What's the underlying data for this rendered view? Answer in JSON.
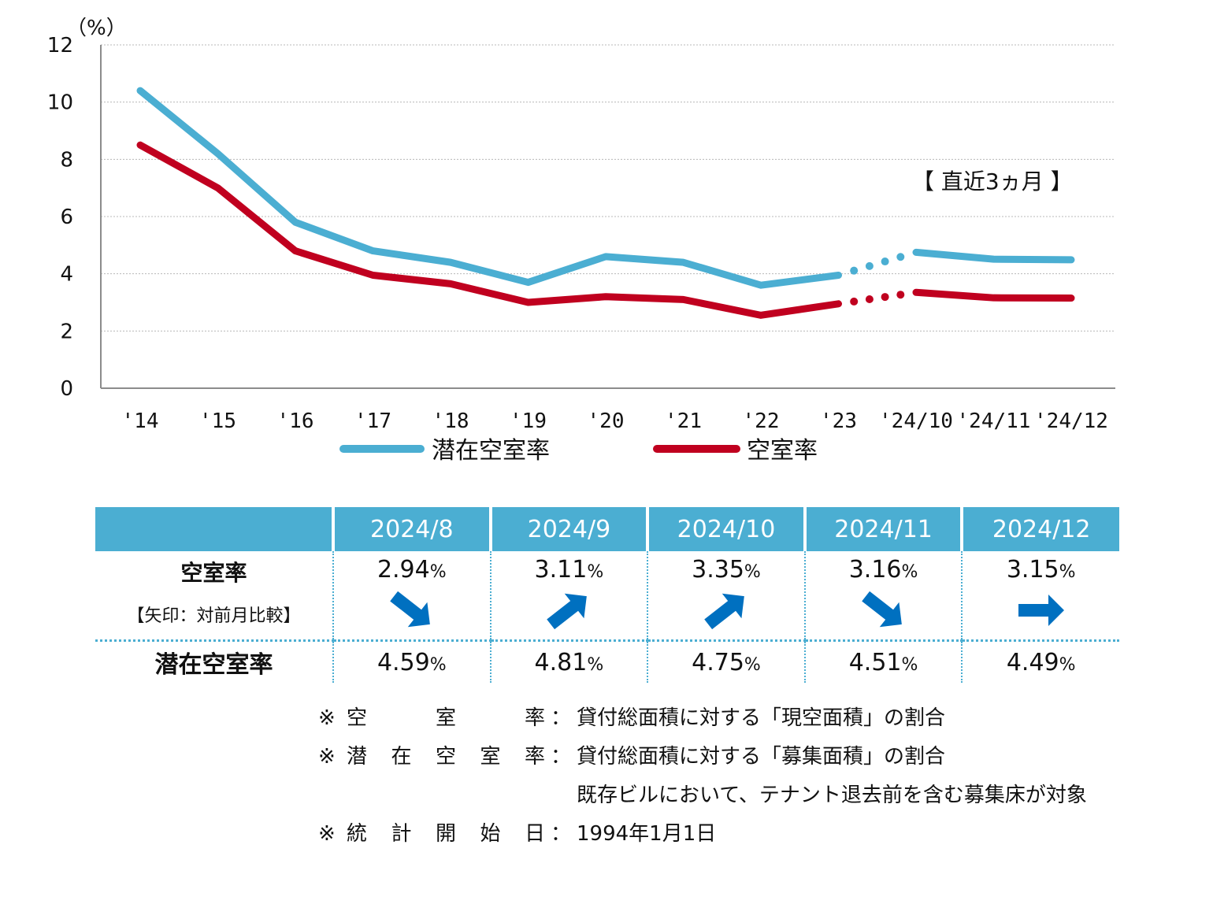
{
  "chart_data": {
    "type": "line",
    "unit_label": "（%）",
    "categories": [
      "'14",
      "'15",
      "'16",
      "'17",
      "'18",
      "'19",
      "'20",
      "'21",
      "'22",
      "'23",
      "'24/10",
      "'24/11",
      "'24/12"
    ],
    "ylim": [
      0,
      12
    ],
    "yticks": [
      0,
      2,
      4,
      6,
      8,
      10,
      12
    ],
    "grid": true,
    "series": [
      {
        "name": "潜在空室率",
        "color": "#4baed2",
        "values": [
          10.4,
          8.2,
          5.8,
          4.8,
          4.4,
          3.7,
          4.6,
          4.4,
          3.6,
          3.95,
          4.75,
          4.51,
          4.49
        ]
      },
      {
        "name": "空室率",
        "color": "#c0001f",
        "values": [
          8.5,
          7.0,
          4.8,
          3.95,
          3.65,
          3.0,
          3.2,
          3.1,
          2.55,
          2.95,
          3.35,
          3.16,
          3.15
        ]
      }
    ],
    "dotted_gap_after_index": 9,
    "annotation": "【 直近3ヵ月 】",
    "legend_placement": "bottom"
  },
  "table": {
    "headers": [
      "",
      "2024/8",
      "2024/9",
      "2024/10",
      "2024/11",
      "2024/12"
    ],
    "vacancy_label": "空室率",
    "vacancy_sublabel": "【矢印：対前月比較】",
    "potential_label": "潜在空室率",
    "pct": "%",
    "vacancy_values": [
      "2.94",
      "3.11",
      "3.35",
      "3.16",
      "3.15"
    ],
    "vacancy_trend": [
      "down",
      "up",
      "up",
      "down",
      "flat"
    ],
    "potential_values": [
      "4.59",
      "4.81",
      "4.75",
      "4.51",
      "4.49"
    ],
    "arrow_color": "#0070c0"
  },
  "notes": [
    {
      "mark": "※",
      "label": "空室率",
      "colon": "：",
      "text": "貸付総面積に対する「現空面積」の割合"
    },
    {
      "mark": "※",
      "label": "潜在空室率",
      "colon": "：",
      "text": "貸付総面積に対する「募集面積」の割合"
    },
    {
      "mark": "",
      "label": "",
      "colon": "",
      "text": "既存ビルにおいて、テナント退去前を含む募集床が対象"
    },
    {
      "mark": "※",
      "label": "統計開始日",
      "colon": "：",
      "text": "1994年1月1日"
    }
  ]
}
